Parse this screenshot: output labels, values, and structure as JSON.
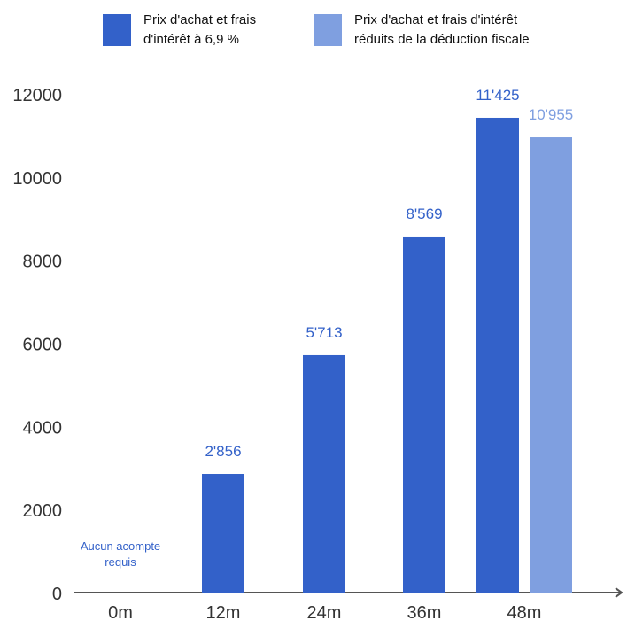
{
  "legend": [
    {
      "label": "Prix d'achat et frais\nd'intérêt à 6,9 %",
      "color": "#3361c9"
    },
    {
      "label": "Prix d'achat et frais d'intérêt\nréduits de la déduction fiscale",
      "color": "#7f9fe0"
    }
  ],
  "chart_data": {
    "type": "bar",
    "categories": [
      "0m",
      "12m",
      "24m",
      "36m",
      "48m"
    ],
    "series": [
      {
        "name": "Prix d'achat et frais d'intérêt à 6,9 %",
        "color": "#3361c9",
        "values": [
          0,
          2856,
          5713,
          8569,
          11425
        ],
        "value_labels": [
          "",
          "2'856",
          "5'713",
          "8'569",
          "11'425"
        ]
      },
      {
        "name": "Prix d'achat et frais d'intérêt réduits de la déduction fiscale",
        "color": "#7f9fe0",
        "values": [
          null,
          null,
          null,
          null,
          10955
        ],
        "value_labels": [
          "",
          "",
          "",
          "",
          "10'955"
        ]
      }
    ],
    "yticks": [
      0,
      2000,
      4000,
      6000,
      8000,
      10000,
      12000
    ],
    "ylim": [
      0,
      12000
    ],
    "grid": false,
    "legend_position": "top",
    "annotations": [
      {
        "category": "0m",
        "text": "Aucun acompte\nrequis",
        "color": "#3361c9"
      }
    ],
    "axis_color": "#555555",
    "label_color": "#333333"
  }
}
